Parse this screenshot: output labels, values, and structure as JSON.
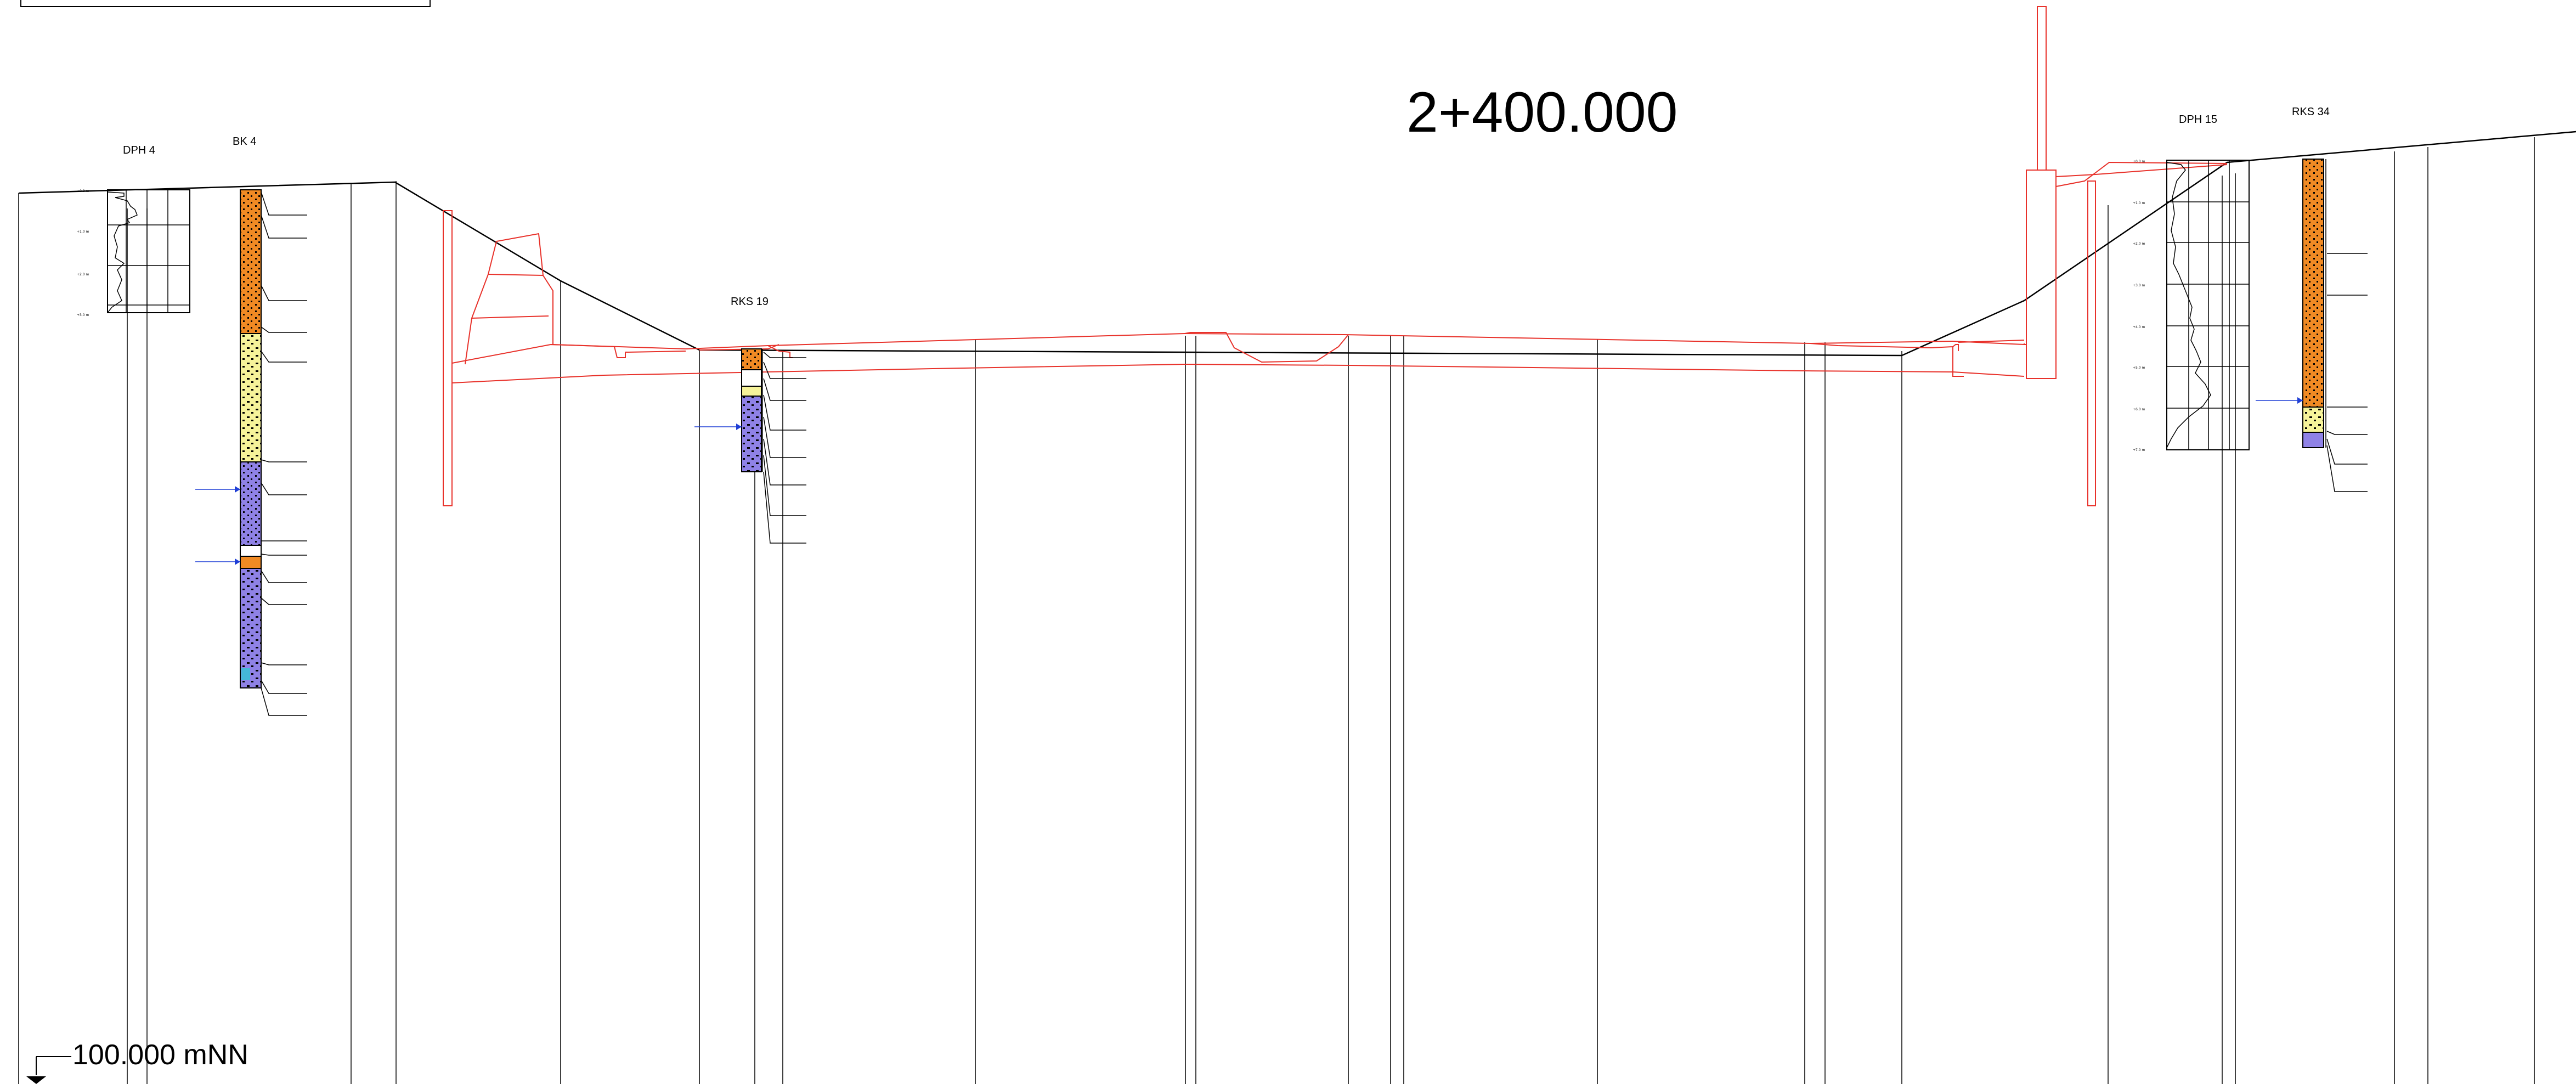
{
  "station": "2+400.000",
  "reference_level": "100.000 mNN",
  "boreholes": [
    {
      "id": "DPH 4",
      "kind": "probe"
    },
    {
      "id": "BK 4",
      "kind": "bore"
    },
    {
      "id": "RKS 19",
      "kind": "bore"
    },
    {
      "id": "DPH 15",
      "kind": "probe"
    },
    {
      "id": "RKS 34",
      "kind": "bore"
    }
  ],
  "colors": {
    "structure": "#e8322b",
    "terrain": "#000000",
    "orange_soil": "#f08a24",
    "yellow_soil": "#f6f39a",
    "purple_soil": "#8f82e6",
    "groundwater": "#1f3fd6"
  }
}
